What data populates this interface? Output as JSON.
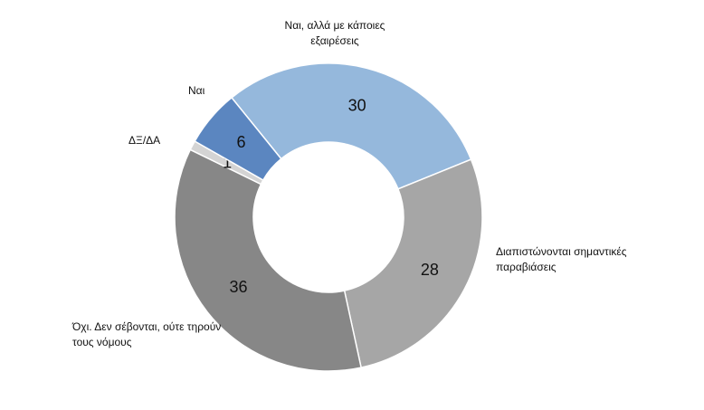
{
  "chart_data": {
    "type": "donut",
    "categories": [
      "Ναι, αλλά με κάποιες εξαιρέσεις",
      "Διαπιστώνονται σημαντικές παραβιάσεις",
      "Όχι. Δεν σέβονται, ούτε τηρούν τους νόμους",
      "ΔΞ/ΔΑ",
      "Ναι"
    ],
    "values": [
      30,
      28,
      36,
      1,
      6
    ],
    "colors": [
      "#95b8dc",
      "#a6a6a6",
      "#878787",
      "#d4d4d4",
      "#5b86c0"
    ]
  }
}
